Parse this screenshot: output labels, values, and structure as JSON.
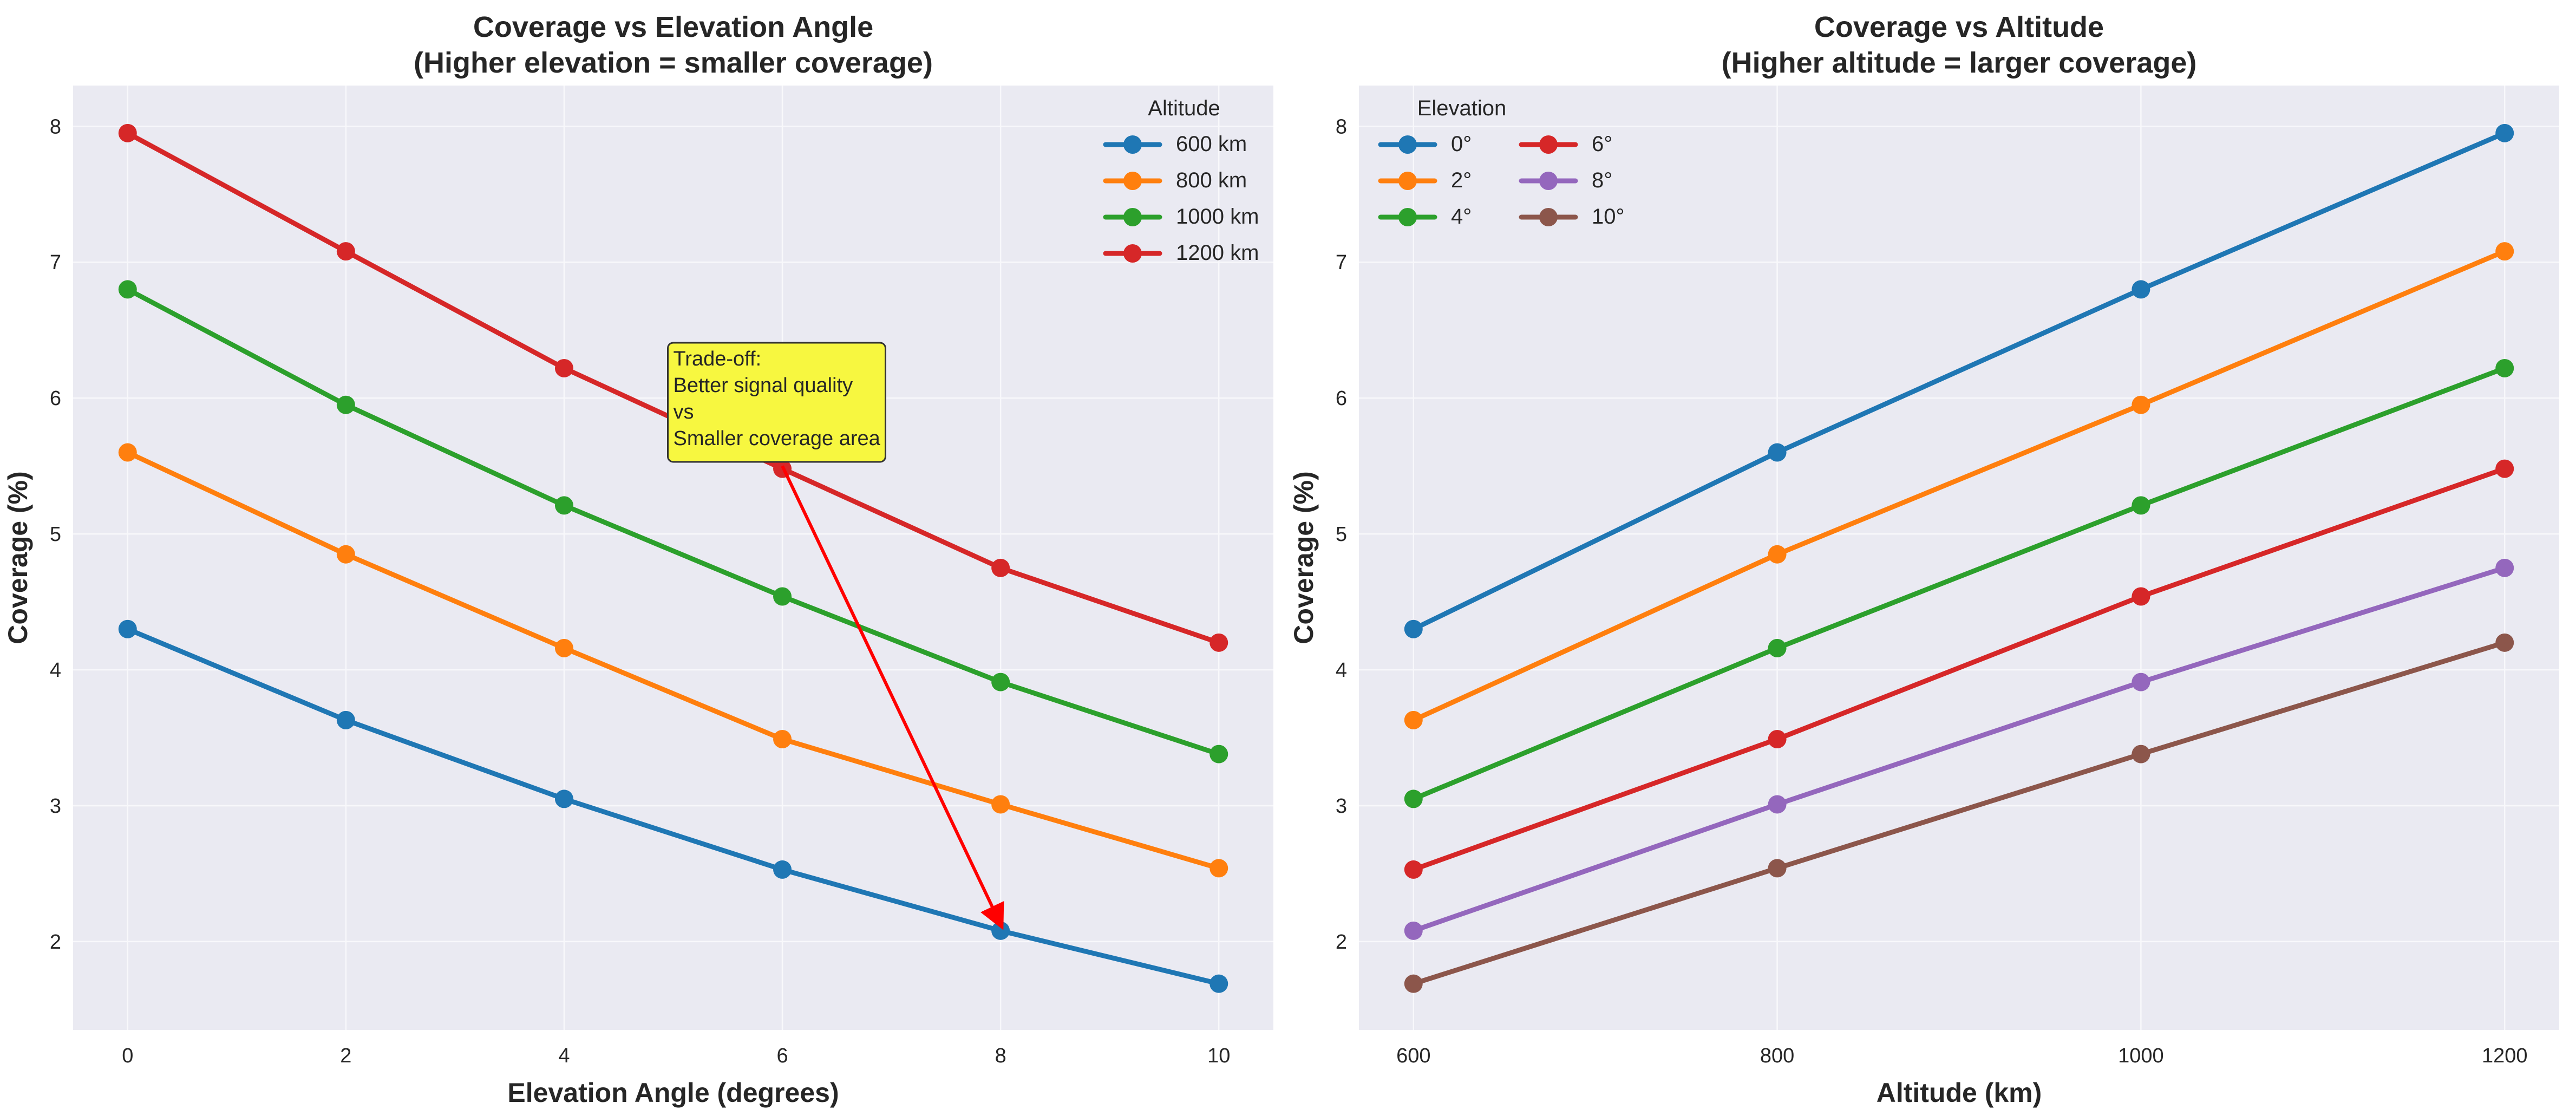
{
  "chart_data": [
    {
      "type": "line",
      "title": "Coverage vs Elevation Angle",
      "subtitle": "(Higher elevation = smaller coverage)",
      "xlabel": "Elevation Angle (degrees)",
      "ylabel": "Coverage (%)",
      "x": [
        0,
        2,
        4,
        6,
        8,
        10
      ],
      "xlim": [
        -0.5,
        10.5
      ],
      "ylim": [
        1.35,
        8.3
      ],
      "xticks": [
        0,
        2,
        4,
        6,
        8,
        10
      ],
      "yticks": [
        2,
        3,
        4,
        5,
        6,
        7,
        8
      ],
      "grid": true,
      "legend": {
        "title": "Altitude",
        "placement": "top-right"
      },
      "series": [
        {
          "name": "600 km",
          "color": "#1f77b4",
          "values": [
            4.3,
            3.63,
            3.05,
            2.53,
            2.08,
            1.69
          ]
        },
        {
          "name": "800 km",
          "color": "#ff7f0e",
          "values": [
            5.6,
            4.85,
            4.16,
            3.49,
            3.01,
            2.54
          ]
        },
        {
          "name": "1000 km",
          "color": "#2ca02c",
          "values": [
            6.8,
            5.95,
            5.21,
            4.54,
            3.91,
            3.38
          ]
        },
        {
          "name": "1200 km",
          "color": "#d62728",
          "values": [
            7.95,
            7.08,
            6.22,
            5.48,
            4.75,
            4.2
          ]
        }
      ],
      "annotation": {
        "lines": [
          "Trade-off:",
          "Better signal quality",
          "vs",
          "Smaller coverage area"
        ],
        "box_color": "#f7f740",
        "arrow_color": "#ff0000",
        "text_x": 5.0,
        "text_y": 6.2,
        "arrow_from": [
          6.0,
          5.5
        ],
        "arrow_to": [
          8.0,
          2.08
        ]
      }
    },
    {
      "type": "line",
      "title": "Coverage vs Altitude",
      "subtitle": "(Higher altitude = larger coverage)",
      "xlabel": "Altitude (km)",
      "ylabel": "Coverage (%)",
      "x": [
        600,
        800,
        1000,
        1200
      ],
      "xlim": [
        570,
        1230
      ],
      "ylim": [
        1.35,
        8.3
      ],
      "xticks": [
        600,
        800,
        1000,
        1200
      ],
      "yticks": [
        2,
        3,
        4,
        5,
        6,
        7,
        8
      ],
      "grid": true,
      "legend": {
        "title": "Elevation",
        "placement": "top-left",
        "columns": 2
      },
      "series": [
        {
          "name": "0°",
          "color": "#1f77b4",
          "values": [
            4.3,
            5.6,
            6.8,
            7.95
          ]
        },
        {
          "name": "2°",
          "color": "#ff7f0e",
          "values": [
            3.63,
            4.85,
            5.95,
            7.08
          ]
        },
        {
          "name": "4°",
          "color": "#2ca02c",
          "values": [
            3.05,
            4.16,
            5.21,
            6.22
          ]
        },
        {
          "name": "6°",
          "color": "#d62728",
          "values": [
            2.53,
            3.49,
            4.54,
            5.48
          ]
        },
        {
          "name": "8°",
          "color": "#9467bd",
          "values": [
            2.08,
            3.01,
            3.91,
            4.75
          ]
        },
        {
          "name": "10°",
          "color": "#8c564b",
          "values": [
            1.69,
            2.54,
            3.38,
            4.2
          ]
        }
      ]
    }
  ]
}
